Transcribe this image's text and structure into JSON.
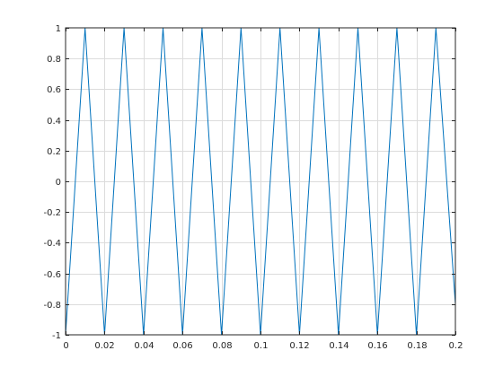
{
  "chart_data": {
    "type": "line",
    "title": "",
    "xlabel": "",
    "ylabel": "",
    "xlim": [
      0,
      0.2
    ],
    "ylim": [
      -1,
      1
    ],
    "grid": true,
    "legend": "none",
    "x_ticks": [
      "0",
      "0.02",
      "0.04",
      "0.06",
      "0.08",
      "0.1",
      "0.12",
      "0.14",
      "0.16",
      "0.18",
      "0.2"
    ],
    "y_ticks": [
      "-1",
      "-0.8",
      "-0.6",
      "-0.4",
      "-0.2",
      "0",
      "0.2",
      "0.4",
      "0.6",
      "0.8",
      "1"
    ],
    "series": [
      {
        "color": "#0072bd",
        "x": [
          0,
          0.01,
          0.02,
          0.03,
          0.04,
          0.05,
          0.06,
          0.07,
          0.08,
          0.09,
          0.1,
          0.11,
          0.12,
          0.13,
          0.14,
          0.15,
          0.16,
          0.17,
          0.18,
          0.19,
          0.2
        ],
        "y": [
          -1,
          1,
          -1,
          1,
          -1,
          1,
          -1,
          1,
          -1,
          1,
          -1,
          1,
          -1,
          1,
          -1,
          1,
          -1,
          1,
          -1,
          1,
          -0.8
        ]
      }
    ]
  }
}
